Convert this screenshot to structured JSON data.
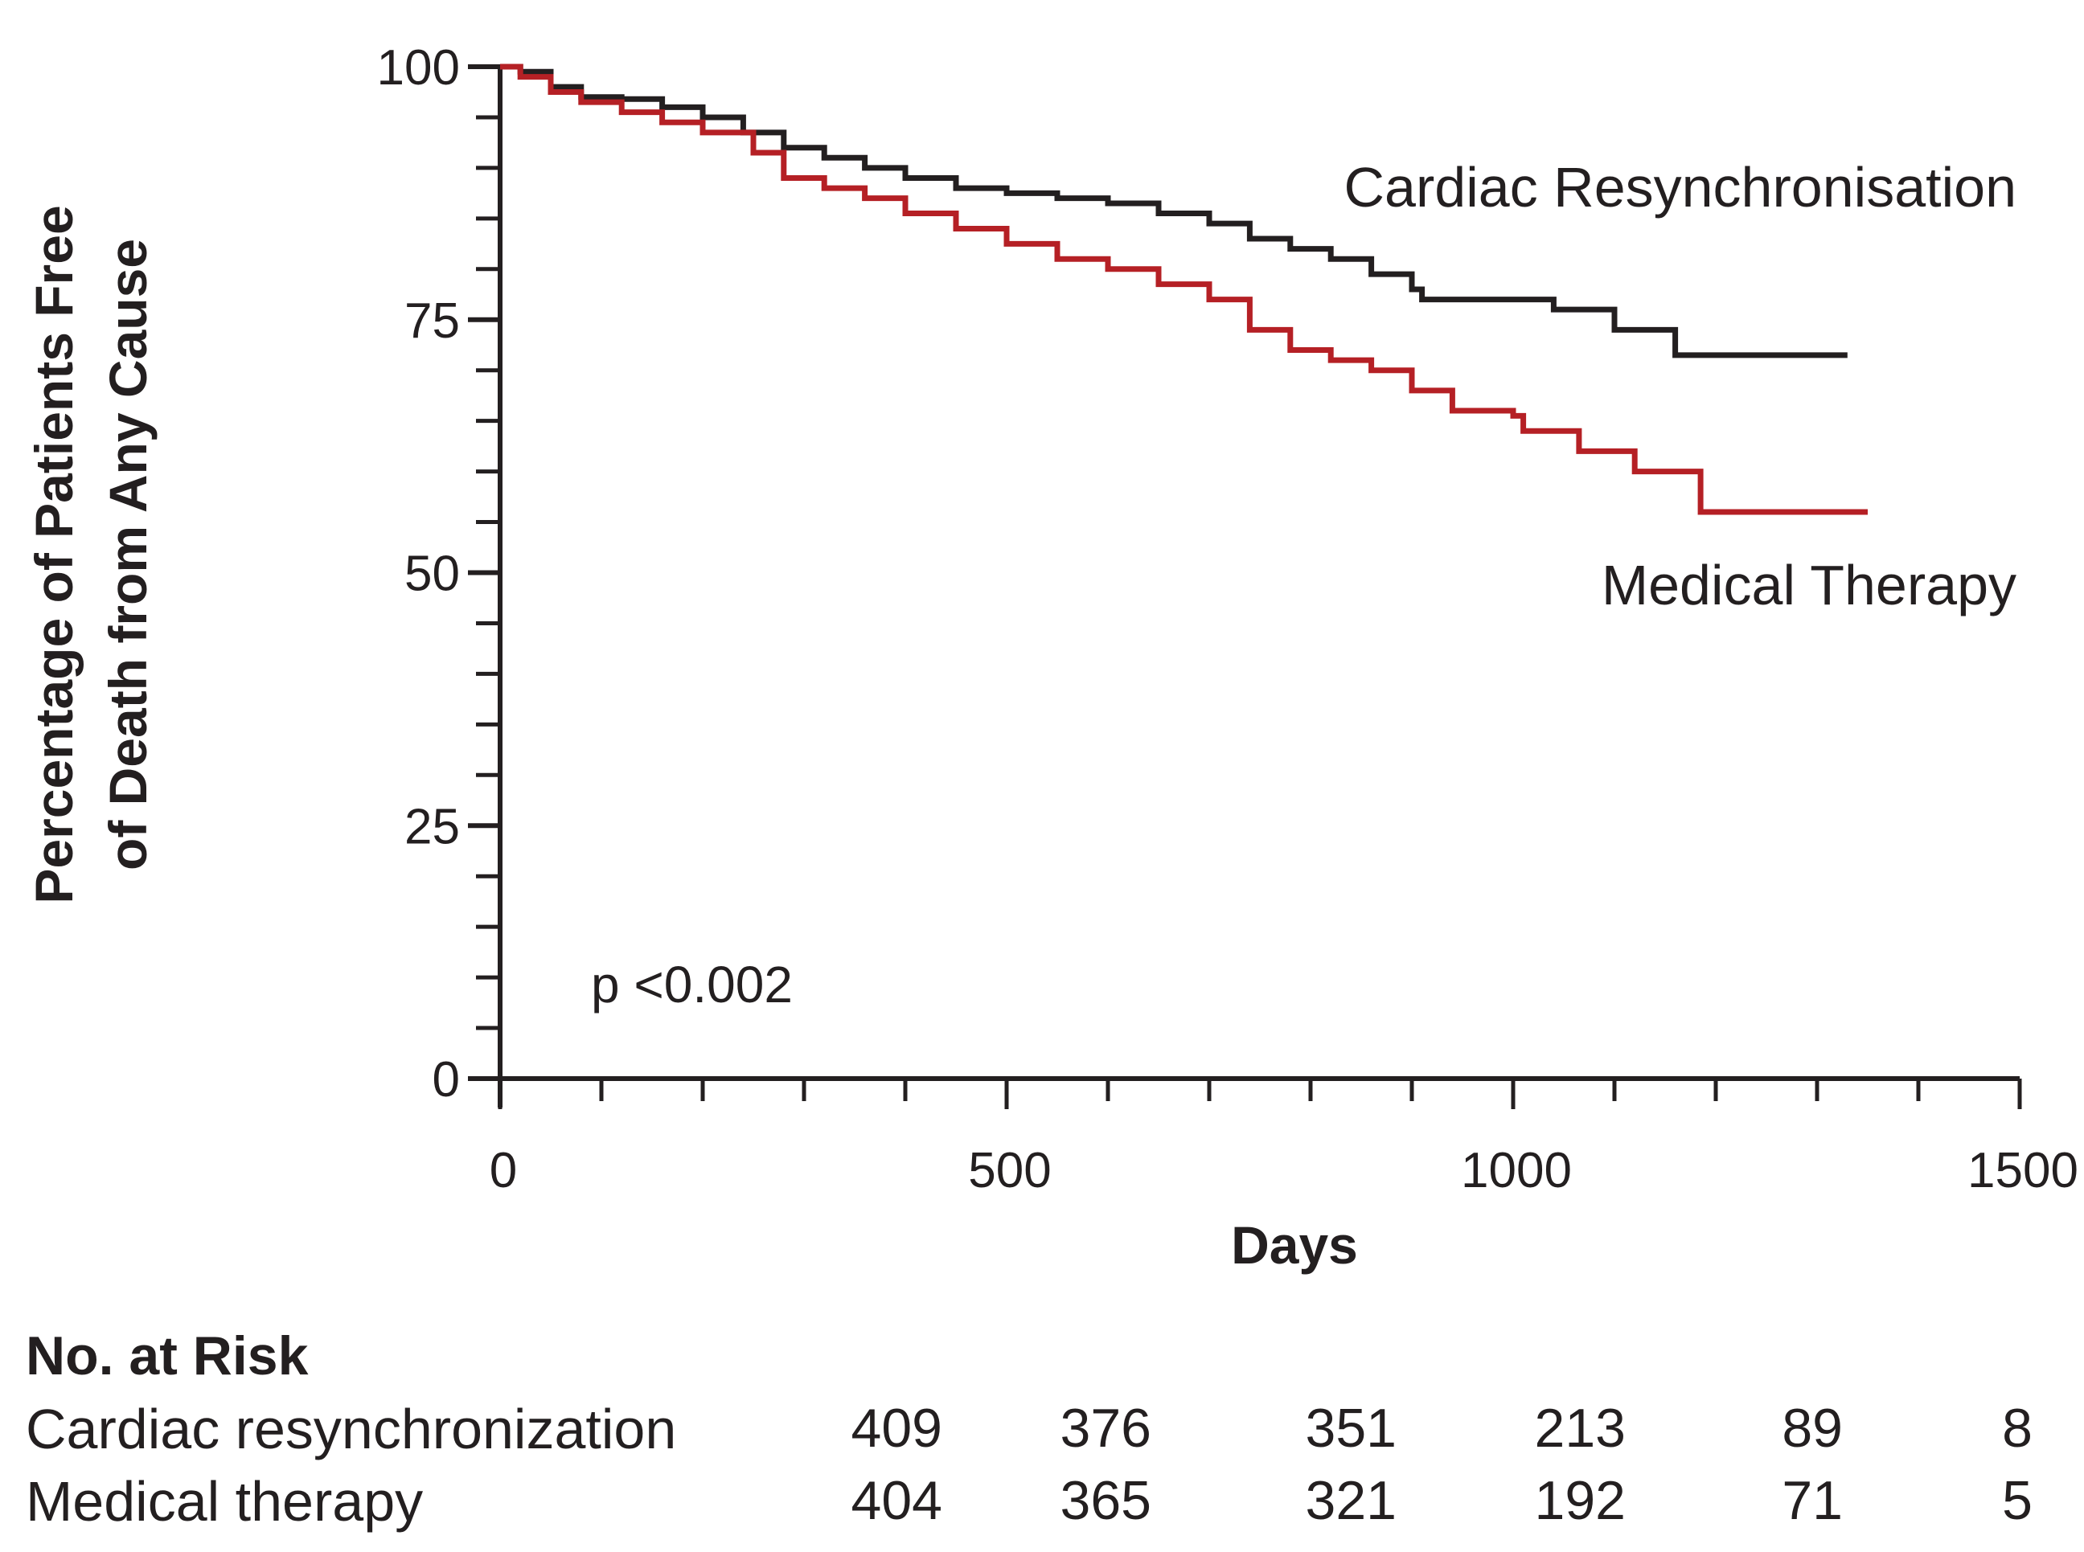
{
  "chart_data": {
    "type": "line",
    "subtype": "kaplan-meier",
    "title": "",
    "xlabel": "Days",
    "ylabel_lines": [
      "Percentage of Patients Free",
      "of Death from Any Cause"
    ],
    "xlim": [
      0,
      1500
    ],
    "ylim": [
      0,
      100
    ],
    "x_ticks": [
      "0",
      "500",
      "1000",
      "1500"
    ],
    "y_ticks": [
      "0",
      "25",
      "50",
      "75",
      "100"
    ],
    "annotation": "p <0.002",
    "series": [
      {
        "name": "Cardiac Resynchronisation",
        "color": "#231f20",
        "points": [
          [
            0,
            100
          ],
          [
            20,
            99.5
          ],
          [
            50,
            98
          ],
          [
            80,
            97
          ],
          [
            120,
            96.8
          ],
          [
            160,
            96
          ],
          [
            200,
            95
          ],
          [
            240,
            93.5
          ],
          [
            280,
            92
          ],
          [
            320,
            91
          ],
          [
            360,
            90
          ],
          [
            400,
            89
          ],
          [
            450,
            88
          ],
          [
            500,
            87.5
          ],
          [
            550,
            87
          ],
          [
            600,
            86.5
          ],
          [
            650,
            85.5
          ],
          [
            700,
            84.5
          ],
          [
            740,
            83
          ],
          [
            780,
            82
          ],
          [
            820,
            81
          ],
          [
            860,
            79.5
          ],
          [
            900,
            78
          ],
          [
            910,
            77
          ],
          [
            1030,
            77
          ],
          [
            1040,
            76
          ],
          [
            1090,
            76
          ],
          [
            1100,
            74
          ],
          [
            1155,
            74
          ],
          [
            1160,
            71.5
          ],
          [
            1330,
            71.5
          ]
        ]
      },
      {
        "name": "Medical Therapy",
        "color": "#b52025",
        "points": [
          [
            0,
            100
          ],
          [
            20,
            99
          ],
          [
            50,
            97.5
          ],
          [
            80,
            96.5
          ],
          [
            120,
            95.5
          ],
          [
            160,
            94.5
          ],
          [
            200,
            93.5
          ],
          [
            250,
            91.5
          ],
          [
            280,
            89
          ],
          [
            320,
            88
          ],
          [
            360,
            87
          ],
          [
            400,
            85.5
          ],
          [
            450,
            84
          ],
          [
            500,
            82.5
          ],
          [
            550,
            81
          ],
          [
            600,
            80
          ],
          [
            650,
            78.5
          ],
          [
            700,
            77
          ],
          [
            740,
            74
          ],
          [
            780,
            72
          ],
          [
            820,
            71
          ],
          [
            860,
            70
          ],
          [
            900,
            68
          ],
          [
            940,
            66
          ],
          [
            1000,
            65.5
          ],
          [
            1010,
            64
          ],
          [
            1060,
            64
          ],
          [
            1065,
            62
          ],
          [
            1110,
            62
          ],
          [
            1120,
            60
          ],
          [
            1180,
            60
          ],
          [
            1185,
            56
          ],
          [
            1350,
            56
          ]
        ]
      }
    ]
  },
  "risk_table": {
    "title": "No. at Risk",
    "rows": [
      {
        "label": "Cardiac resynchronization",
        "values": [
          "409",
          "376",
          "351",
          "213",
          "89",
          "8"
        ]
      },
      {
        "label": "Medical therapy",
        "values": [
          "404",
          "365",
          "321",
          "192",
          "71",
          "5"
        ]
      }
    ]
  }
}
